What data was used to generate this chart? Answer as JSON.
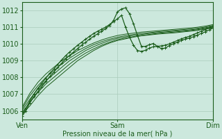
{
  "xlabel": "Pression niveau de la mer( hPa )",
  "bg_color": "#cce8dd",
  "grid_color": "#aaccbb",
  "line_color": "#1a5c1a",
  "xlim": [
    0,
    48
  ],
  "ylim": [
    1005.5,
    1012.5
  ],
  "yticks": [
    1006,
    1007,
    1008,
    1009,
    1010,
    1011,
    1012
  ],
  "xtick_positions": [
    0,
    24,
    48
  ],
  "xtick_labels": [
    "Ven",
    "Sam",
    "Dim"
  ],
  "lines": [
    {
      "x": [
        0,
        2,
        4,
        6,
        8,
        10,
        12,
        14,
        16,
        18,
        20,
        22,
        24,
        26,
        28,
        30,
        32,
        34,
        36,
        38,
        40,
        42,
        44,
        46,
        48
      ],
      "y": [
        1005.8,
        1006.3,
        1006.9,
        1007.4,
        1007.8,
        1008.2,
        1008.6,
        1009.0,
        1009.3,
        1009.6,
        1009.85,
        1010.05,
        1010.2,
        1010.3,
        1010.4,
        1010.48,
        1010.53,
        1010.58,
        1010.62,
        1010.65,
        1010.7,
        1010.75,
        1010.8,
        1010.88,
        1010.95
      ],
      "marker": false,
      "lw": 0.7
    },
    {
      "x": [
        0,
        2,
        4,
        6,
        8,
        10,
        12,
        14,
        16,
        18,
        20,
        22,
        24,
        26,
        28,
        30,
        32,
        34,
        36,
        38,
        40,
        42,
        44,
        46,
        48
      ],
      "y": [
        1005.9,
        1006.5,
        1007.1,
        1007.6,
        1008.0,
        1008.4,
        1008.8,
        1009.15,
        1009.45,
        1009.7,
        1009.92,
        1010.1,
        1010.25,
        1010.35,
        1010.43,
        1010.5,
        1010.56,
        1010.62,
        1010.66,
        1010.7,
        1010.74,
        1010.78,
        1010.84,
        1010.92,
        1011.0
      ],
      "marker": false,
      "lw": 0.7
    },
    {
      "x": [
        0,
        2,
        4,
        6,
        8,
        10,
        12,
        14,
        16,
        18,
        20,
        22,
        24,
        26,
        28,
        30,
        32,
        34,
        36,
        38,
        40,
        42,
        44,
        46,
        48
      ],
      "y": [
        1006.0,
        1006.7,
        1007.3,
        1007.8,
        1008.2,
        1008.6,
        1009.0,
        1009.3,
        1009.6,
        1009.83,
        1010.03,
        1010.2,
        1010.33,
        1010.42,
        1010.5,
        1010.56,
        1010.62,
        1010.67,
        1010.71,
        1010.75,
        1010.79,
        1010.83,
        1010.88,
        1010.96,
        1011.05
      ],
      "marker": false,
      "lw": 0.7
    },
    {
      "x": [
        0,
        2,
        4,
        6,
        8,
        10,
        12,
        14,
        16,
        18,
        20,
        22,
        24,
        26,
        28,
        30,
        32,
        34,
        36,
        38,
        40,
        42,
        44,
        46,
        48
      ],
      "y": [
        1006.1,
        1006.9,
        1007.5,
        1008.0,
        1008.4,
        1008.8,
        1009.15,
        1009.45,
        1009.72,
        1009.95,
        1010.13,
        1010.28,
        1010.4,
        1010.49,
        1010.56,
        1010.62,
        1010.67,
        1010.72,
        1010.76,
        1010.8,
        1010.84,
        1010.88,
        1010.93,
        1011.0,
        1011.1
      ],
      "marker": false,
      "lw": 0.7
    },
    {
      "x": [
        0,
        2,
        4,
        6,
        8,
        10,
        12,
        14,
        16,
        18,
        20,
        22,
        24,
        26,
        28,
        30,
        32,
        34,
        36,
        38,
        40,
        42,
        44,
        46,
        48
      ],
      "y": [
        1006.2,
        1007.05,
        1007.7,
        1008.2,
        1008.6,
        1009.0,
        1009.3,
        1009.6,
        1009.83,
        1010.05,
        1010.23,
        1010.38,
        1010.5,
        1010.58,
        1010.64,
        1010.7,
        1010.74,
        1010.78,
        1010.82,
        1010.86,
        1010.9,
        1010.94,
        1010.99,
        1011.06,
        1011.15
      ],
      "marker": false,
      "lw": 0.7
    },
    {
      "x": [
        0,
        1,
        2,
        3,
        4,
        5,
        6,
        7,
        8,
        9,
        10,
        11,
        12,
        13,
        14,
        15,
        16,
        17,
        18,
        19,
        20,
        21,
        22,
        23,
        24,
        25,
        26,
        27,
        28,
        29,
        30,
        31,
        32,
        33,
        34,
        35,
        36,
        37,
        38,
        39,
        40,
        41,
        42,
        43,
        44,
        45,
        46,
        47,
        48
      ],
      "y": [
        1005.7,
        1006.0,
        1006.5,
        1006.85,
        1007.15,
        1007.45,
        1007.75,
        1008.05,
        1008.3,
        1008.6,
        1008.85,
        1009.1,
        1009.32,
        1009.52,
        1009.72,
        1009.92,
        1010.1,
        1010.28,
        1010.45,
        1010.6,
        1010.75,
        1010.9,
        1011.1,
        1011.4,
        1011.92,
        1012.08,
        1012.15,
        1011.8,
        1011.2,
        1010.5,
        1009.85,
        1009.85,
        1009.95,
        1010.02,
        1009.85,
        1009.72,
        1009.75,
        1009.9,
        1010.0,
        1010.1,
        1010.2,
        1010.28,
        1010.35,
        1010.42,
        1010.52,
        1010.62,
        1010.72,
        1010.83,
        1010.95
      ],
      "marker": true,
      "lw": 0.9
    },
    {
      "x": [
        0,
        1,
        2,
        3,
        4,
        5,
        6,
        7,
        8,
        9,
        10,
        11,
        12,
        13,
        14,
        15,
        16,
        17,
        18,
        19,
        20,
        21,
        22,
        23,
        24,
        25,
        26,
        27,
        28,
        29,
        30,
        31,
        32,
        33,
        34,
        35,
        36,
        37,
        38,
        39,
        40,
        41,
        42,
        43,
        44,
        45,
        46,
        47,
        48
      ],
      "y": [
        1005.8,
        1006.15,
        1006.6,
        1007.0,
        1007.35,
        1007.65,
        1007.95,
        1008.25,
        1008.5,
        1008.78,
        1009.05,
        1009.3,
        1009.52,
        1009.72,
        1009.92,
        1010.1,
        1010.28,
        1010.45,
        1010.62,
        1010.75,
        1010.87,
        1011.0,
        1011.15,
        1011.32,
        1011.5,
        1011.7,
        1011.0,
        1010.4,
        1009.92,
        1009.6,
        1009.55,
        1009.62,
        1009.75,
        1009.83,
        1009.85,
        1009.88,
        1009.92,
        1010.0,
        1010.1,
        1010.2,
        1010.3,
        1010.38,
        1010.45,
        1010.55,
        1010.65,
        1010.75,
        1010.85,
        1010.95,
        1011.05
      ],
      "marker": true,
      "lw": 0.9
    }
  ]
}
